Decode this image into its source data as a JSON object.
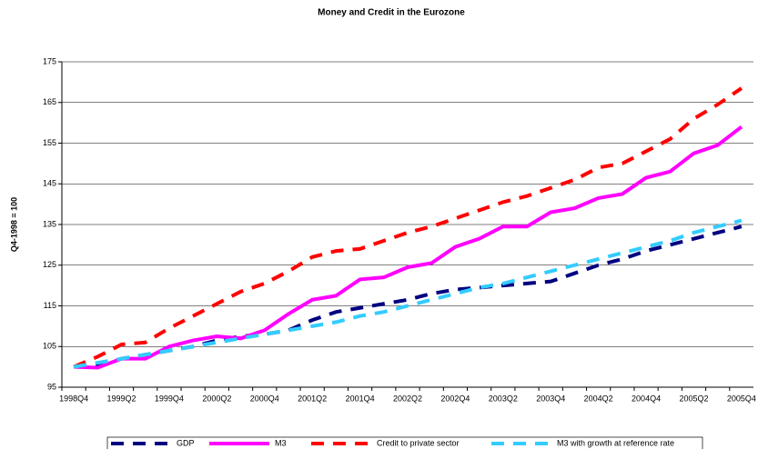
{
  "chart_data": {
    "type": "line",
    "title": "Money and Credit in the Eurozone",
    "y_label": "Q4-1998 = 100",
    "categories": [
      "1998Q4",
      null,
      "1999Q2",
      null,
      "1999Q4",
      null,
      "2000Q2",
      null,
      "2000Q4",
      null,
      "2001Q2",
      null,
      "2001Q4",
      null,
      "2002Q2",
      null,
      "2002Q4",
      null,
      "2003Q2",
      null,
      "2003Q4",
      null,
      "2004Q2",
      null,
      "2004Q4",
      null,
      "2005Q2",
      null,
      "2005Q4"
    ],
    "ylim": [
      95,
      175
    ],
    "yticks": [
      95,
      105,
      115,
      125,
      135,
      145,
      155,
      165,
      175
    ],
    "grid": true,
    "legend": "bottom",
    "series": [
      {
        "name": "GDP",
        "color": "#000080",
        "dash": true,
        "values": [
          100,
          100.5,
          102,
          103,
          104,
          105,
          106.5,
          107.5,
          108,
          109,
          111.5,
          113.5,
          114.5,
          115.5,
          116.5,
          118,
          119,
          119.5,
          120,
          120.5,
          121,
          123,
          125,
          126.5,
          128.5,
          130,
          131.5,
          133,
          134.5
        ]
      },
      {
        "name": "M3",
        "color": "#ff00ff",
        "dash": false,
        "values": [
          100,
          99.8,
          102,
          102,
          105,
          106.5,
          107.5,
          107,
          109,
          113,
          116.5,
          117.5,
          121.5,
          122,
          124.5,
          125.5,
          129.5,
          131.5,
          134.5,
          134.5,
          138,
          139,
          141.5,
          142.5,
          146.5,
          148,
          152.5,
          154.5,
          159
        ]
      },
      {
        "name": "Credit to private sector",
        "color": "#ff0000",
        "dash": true,
        "values": [
          100,
          102.5,
          105.5,
          106,
          109.5,
          112.5,
          115.5,
          118.5,
          120.5,
          123.5,
          127,
          128.5,
          129,
          131,
          133,
          134.5,
          136.5,
          138.5,
          140.5,
          142,
          144,
          146,
          149,
          150,
          153,
          156,
          161,
          164.5,
          168.5
        ]
      },
      {
        "name": "M3 with growth at reference rate",
        "color": "#33ccff",
        "dash": true,
        "values": [
          100,
          101,
          102,
          103,
          104,
          105,
          106,
          107,
          108,
          109,
          110,
          111,
          112.5,
          113.5,
          115,
          116.5,
          118,
          119.5,
          120.5,
          122,
          123.5,
          125,
          126.5,
          128,
          129.5,
          131,
          133,
          134.5,
          136
        ]
      }
    ]
  }
}
